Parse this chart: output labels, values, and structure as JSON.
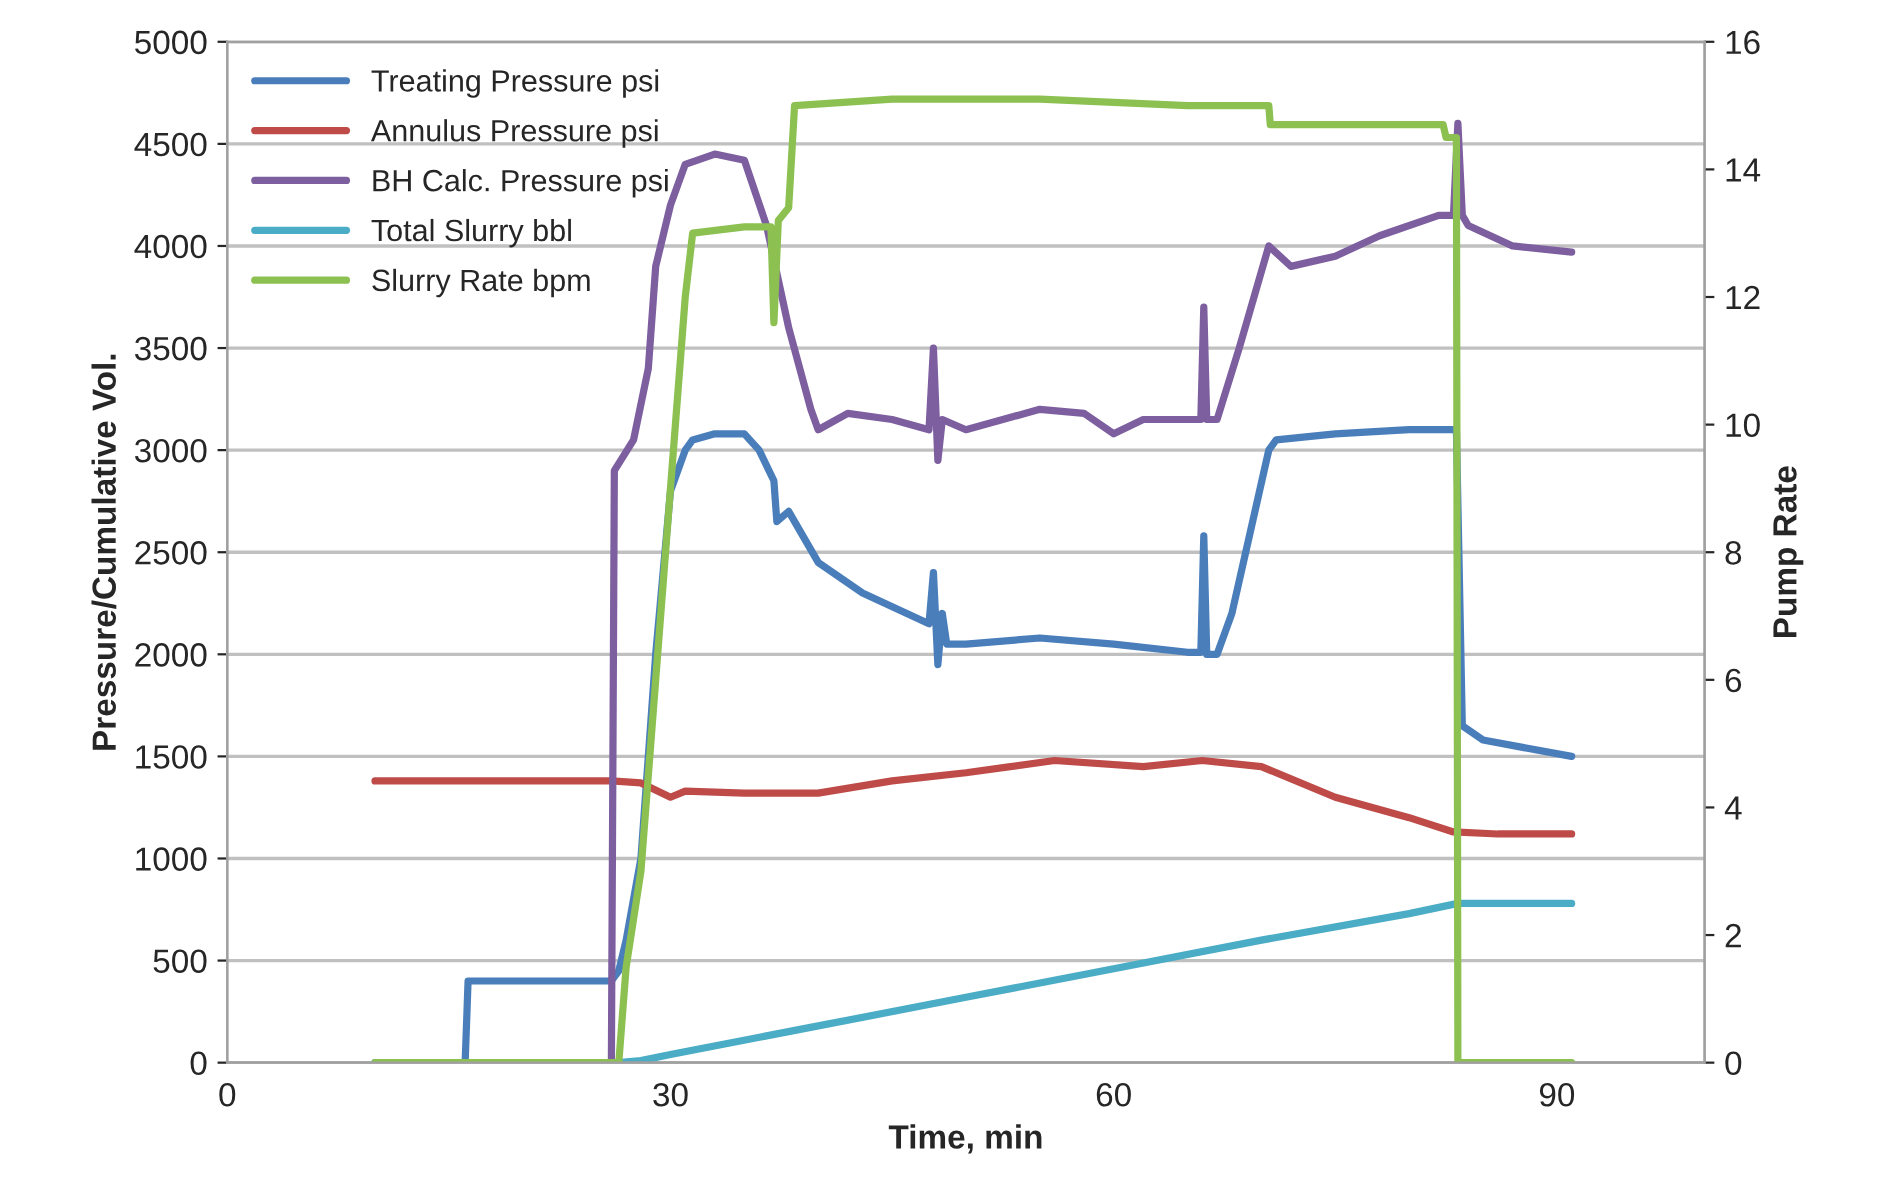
{
  "chart_data": {
    "type": "line",
    "xlabel": "Time, min",
    "ylabel": "Pressure/Cumulative Vol.",
    "y2label": "Pump Rate",
    "xlim": [
      0,
      100
    ],
    "xticks": [
      0,
      30,
      60,
      90
    ],
    "ylim": [
      0,
      5000
    ],
    "yticks": [
      0,
      500,
      1000,
      1500,
      2000,
      2500,
      3000,
      3500,
      4000,
      4500,
      5000
    ],
    "y2lim": [
      0,
      16
    ],
    "y2ticks": [
      0,
      2,
      4,
      6,
      8,
      10,
      12,
      14,
      16
    ],
    "grid": "y",
    "legend": "top left",
    "marker": "none",
    "line_style": "solid",
    "series": [
      {
        "name": "Treating Pressure psi",
        "color": "#4a7ebb",
        "x": [
          10,
          16.1,
          16.3,
          26,
          26.5,
          27,
          28,
          29,
          30,
          31,
          31.5,
          33,
          35,
          36,
          37,
          37.2,
          38,
          40,
          43,
          46,
          47.5,
          47.8,
          48.1,
          48.4,
          48.7,
          50,
          55,
          60,
          65,
          65.9,
          66.1,
          66.3,
          67,
          68,
          70.5,
          71,
          75,
          80,
          83,
          83.2,
          83.6,
          85,
          91
        ],
        "values": [
          0,
          0,
          400,
          400,
          450,
          600,
          1000,
          2000,
          2800,
          3000,
          3050,
          3080,
          3080,
          3000,
          2850,
          2650,
          2700,
          2450,
          2300,
          2200,
          2150,
          2400,
          1950,
          2200,
          2050,
          2050,
          2080,
          2050,
          2010,
          2010,
          2580,
          2000,
          2000,
          2200,
          3000,
          3050,
          3080,
          3100,
          3100,
          3100,
          1650,
          1580,
          1500
        ]
      },
      {
        "name": "Annulus Pressure psi",
        "color": "#be4b48",
        "x": [
          10,
          26,
          28,
          30,
          31,
          35,
          40,
          45,
          50,
          56,
          62,
          66,
          70,
          75,
          80,
          83,
          86,
          91
        ],
        "values": [
          1380,
          1380,
          1370,
          1300,
          1330,
          1320,
          1320,
          1380,
          1420,
          1480,
          1450,
          1480,
          1450,
          1300,
          1200,
          1130,
          1120,
          1120
        ]
      },
      {
        "name": "BH Calc. Pressure psi",
        "color": "#7d5fa0",
        "x": [
          26,
          26.2,
          27.5,
          28.5,
          29,
          30,
          31,
          33,
          35,
          36.5,
          38,
          39.5,
          40,
          42,
          45,
          47.5,
          47.8,
          48.1,
          48.4,
          50,
          55,
          58,
          60,
          62,
          65.5,
          65.9,
          66.1,
          66.3,
          67,
          68.5,
          70.5,
          72,
          75,
          78,
          82,
          83,
          83.3,
          83.6,
          84,
          87,
          91
        ],
        "values": [
          0,
          2900,
          3050,
          3400,
          3900,
          4200,
          4400,
          4450,
          4420,
          4100,
          3600,
          3200,
          3100,
          3180,
          3150,
          3100,
          3500,
          2950,
          3150,
          3100,
          3200,
          3180,
          3080,
          3150,
          3150,
          3150,
          3700,
          3150,
          3150,
          3500,
          4000,
          3900,
          3950,
          4050,
          4150,
          4150,
          4600,
          4150,
          4100,
          4000,
          3970
        ]
      },
      {
        "name": "Total Slurry bbl",
        "color": "#4bacc6",
        "x": [
          10,
          26.5,
          28,
          30,
          40,
          50,
          60,
          70,
          80,
          83.3,
          91
        ],
        "values": [
          0,
          0,
          10,
          40,
          180,
          320,
          460,
          600,
          730,
          780,
          780
        ]
      },
      {
        "name": "Slurry Rate bpm",
        "color": "#8cc152",
        "axis": "y2",
        "x": [
          10,
          26.5,
          27,
          28,
          29,
          30,
          31,
          31.5,
          35,
          36.8,
          37,
          37.3,
          38,
          38.4,
          45,
          55,
          65,
          70.5,
          70.6,
          80,
          82.3,
          82.5,
          83.2,
          83.3,
          91
        ],
        "values": [
          0,
          0,
          1.5,
          3,
          6,
          9,
          12,
          13,
          13.1,
          13.1,
          11.6,
          13.2,
          13.4,
          15,
          15.1,
          15.1,
          15,
          15,
          14.7,
          14.7,
          14.7,
          14.5,
          14.5,
          0,
          0
        ]
      }
    ]
  }
}
